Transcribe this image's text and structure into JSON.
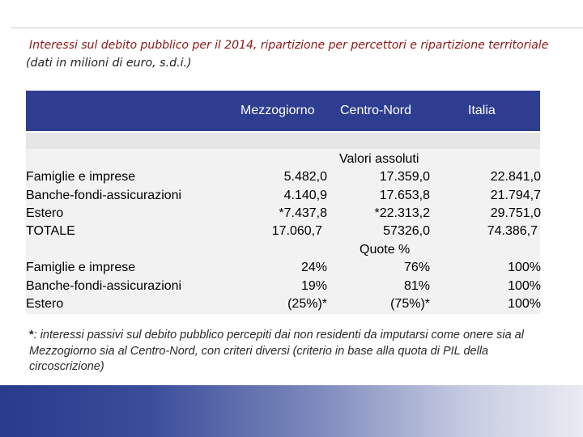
{
  "title": "Interessi sul debito pubblico per il 2014, ripartizione per percettori e ripartizione territoriale",
  "subtitle": "(dati in milioni di euro, s.d.i.)",
  "colors": {
    "header_band": "#2e3d8f",
    "title": "#8b1a1a",
    "footer_start": "#2a3a8c"
  },
  "table": {
    "headers": {
      "mezzogiorno": "Mezzogiorno",
      "centro_nord": "Centro-Nord",
      "italia": "Italia"
    },
    "section_absolute": "Valori assoluti",
    "section_shares": "Quote %",
    "absolute_rows": [
      {
        "label": "Famiglie e imprese",
        "mezzogiorno": "5.482,0",
        "centro_nord": "17.359,0",
        "italia": "22.841,0"
      },
      {
        "label": "Banche-fondi-assicurazioni",
        "mezzogiorno": "4.140,9",
        "centro_nord": "17.653,8",
        "italia": "21.794,7"
      },
      {
        "label": "Estero",
        "mezzogiorno": "*7.437,8",
        "centro_nord": "*22.313,2",
        "italia": "29.751,0"
      },
      {
        "label": "TOTALE",
        "mezzogiorno": "17.060,7",
        "centro_nord": "57326,0",
        "italia": "74.386,7"
      }
    ],
    "share_rows": [
      {
        "label": "Famiglie e imprese",
        "mezzogiorno": "24%",
        "centro_nord": "76%",
        "italia": "100%"
      },
      {
        "label": "Banche-fondi-assicurazioni",
        "mezzogiorno": "19%",
        "centro_nord": "81%",
        "italia": "100%"
      },
      {
        "label": "Estero",
        "mezzogiorno": "(25%)*",
        "centro_nord": "(75%)*",
        "italia": "100%"
      }
    ]
  },
  "note": {
    "marker": "*",
    "text": ": interessi passivi sul debito pubblico percepiti dai non residenti da imputarsi come onere sia al Mezzogiorno sia al Centro-Nord, con criteri diversi (criterio in base alla quota di PIL della circoscrizione)"
  }
}
